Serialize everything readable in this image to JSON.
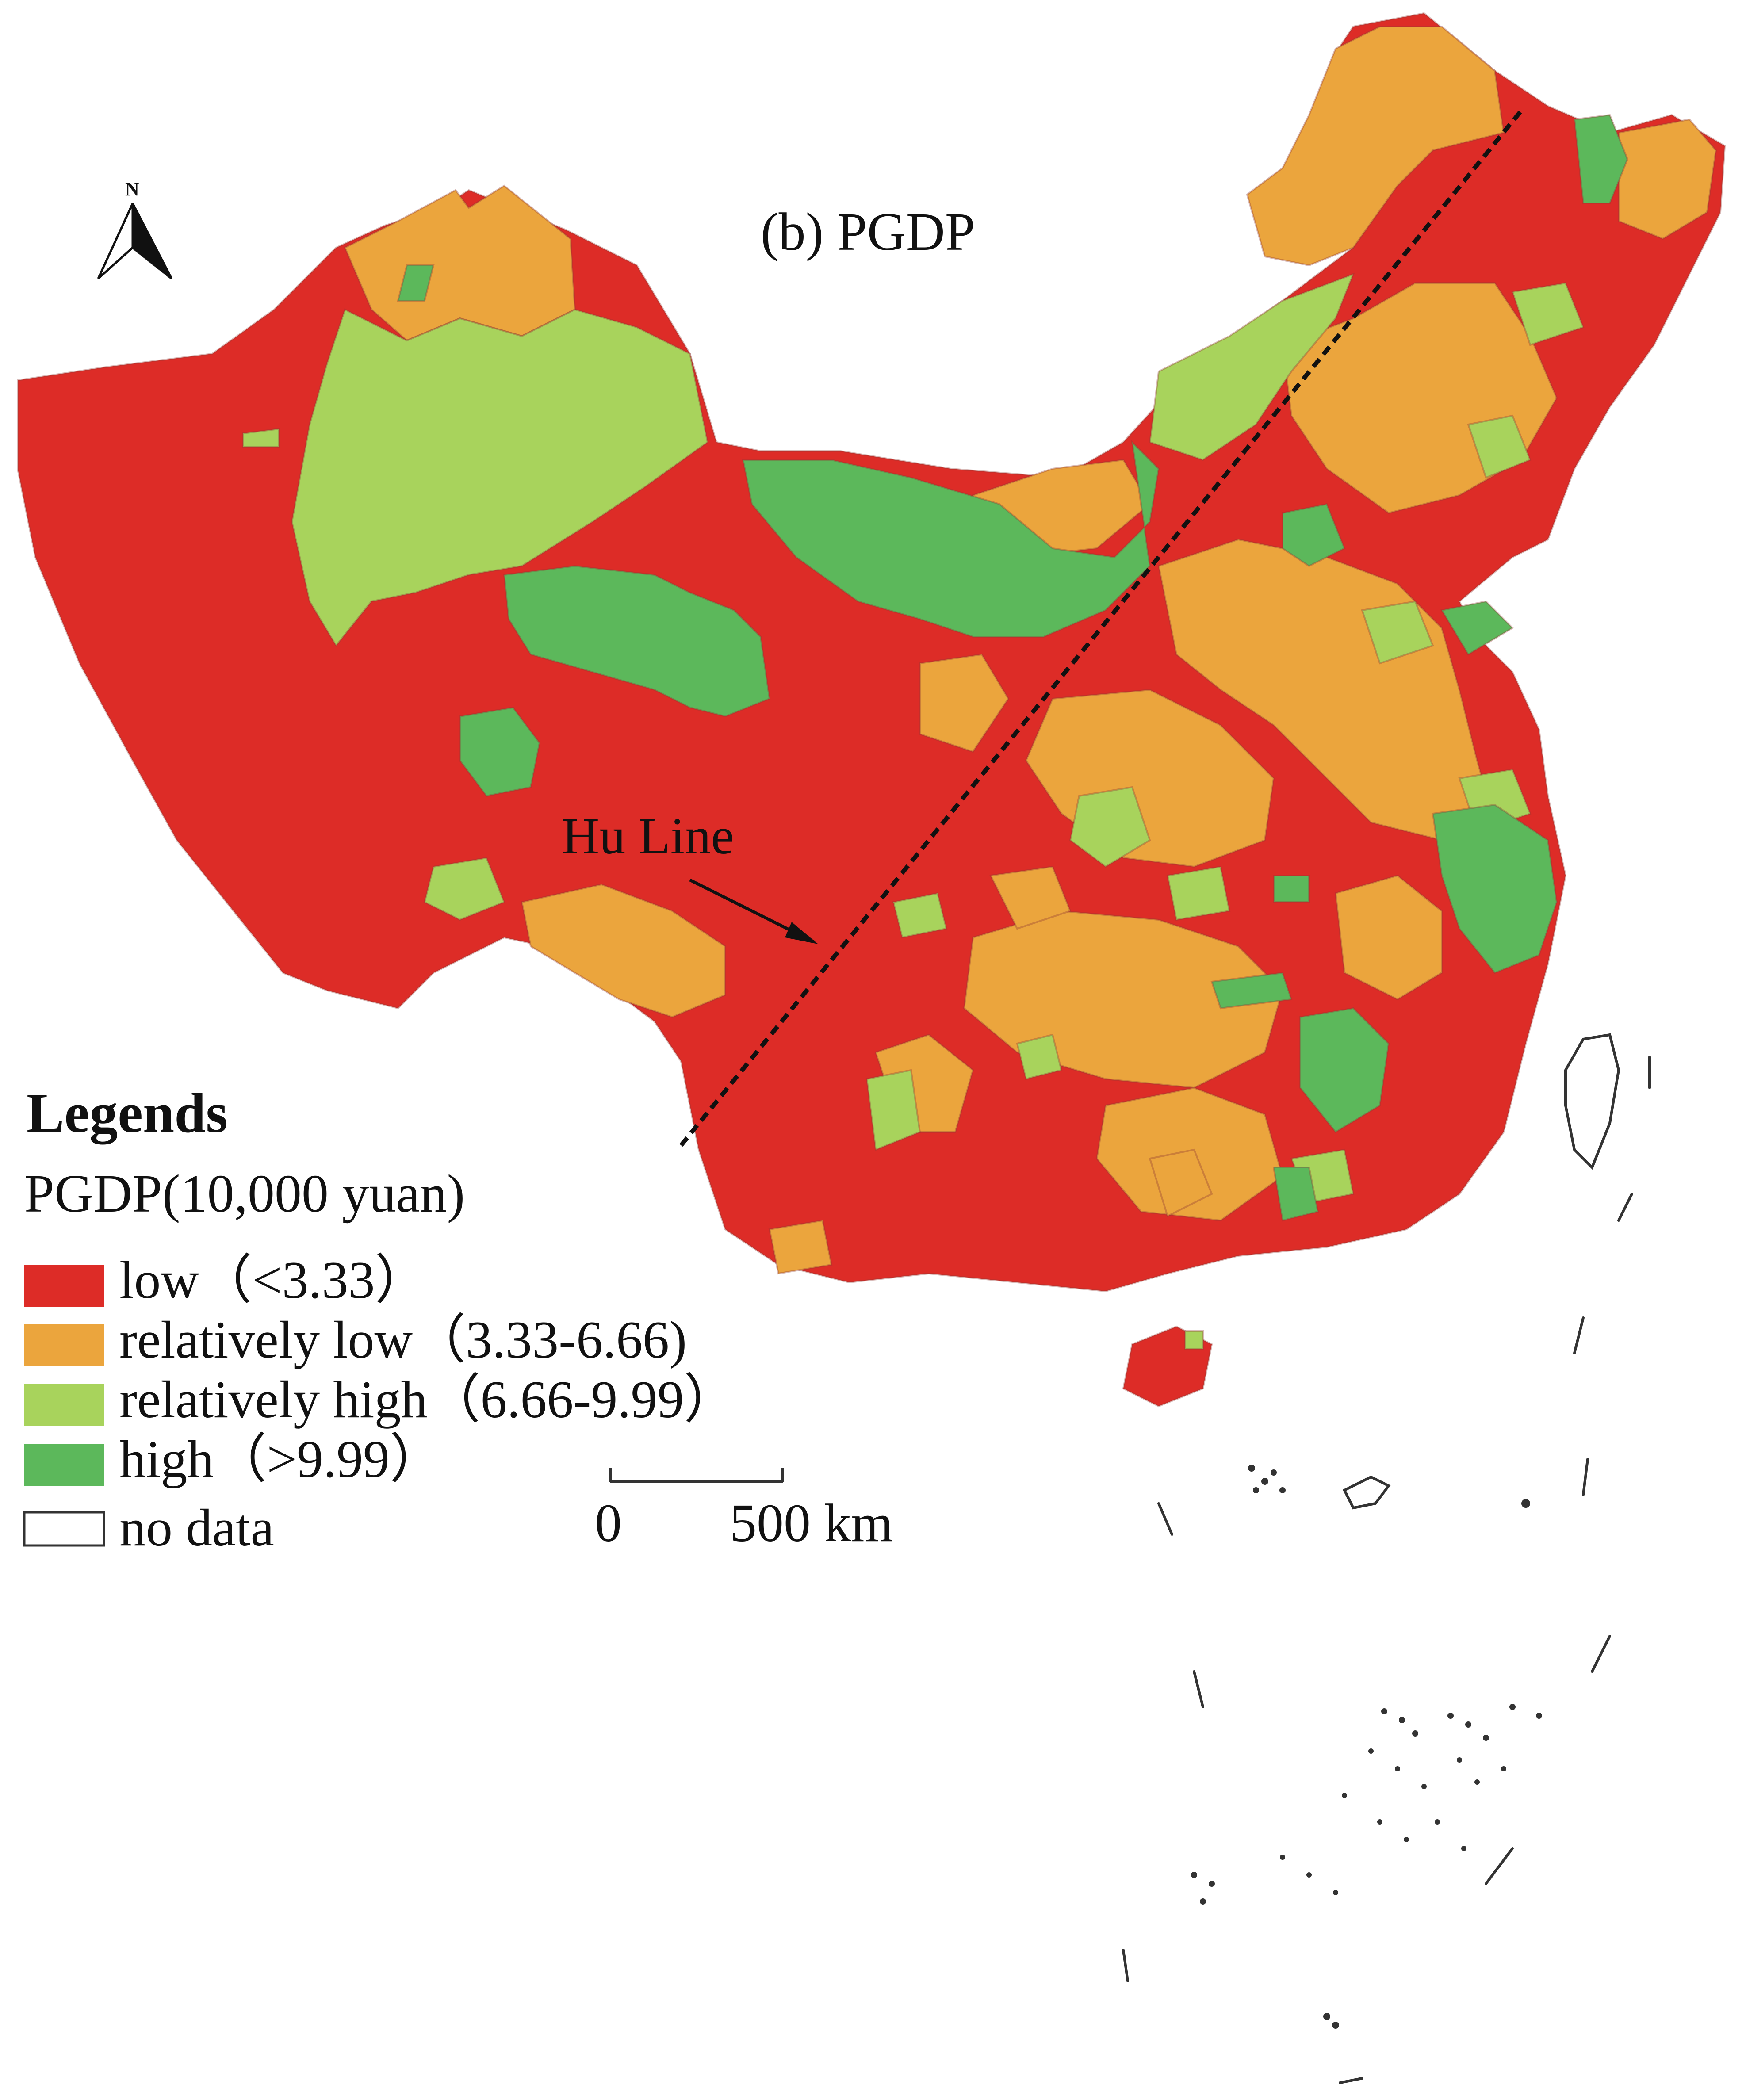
{
  "map": {
    "title": "(b) PGDP",
    "colors": {
      "low": "#dd2c27",
      "relatively_low": "#eba53d",
      "relatively_high": "#a8d35c",
      "high": "#5cb85b",
      "border": "#333333"
    },
    "north_arrow": {
      "label": "N",
      "icon": "north-arrow-icon"
    },
    "hu_line": {
      "label": "Hu  Line"
    },
    "legend": {
      "heading": "Legends",
      "subtitle": "PGDP(10,000  yuan)",
      "items": [
        {
          "label": "low（<3.33）",
          "color": "#dd2c27"
        },
        {
          "label": "relatively low（3.33-6.66)",
          "color": "#eba53d"
        },
        {
          "label": "relatively high（6.66-9.99）",
          "color": "#a8d35c"
        },
        {
          "label": "high（>9.99）",
          "color": "#5cb85b"
        },
        {
          "label": "no  data",
          "color": "#ffffff"
        }
      ]
    },
    "scale_bar": {
      "start_label": "0",
      "end_label": "500 km"
    }
  }
}
